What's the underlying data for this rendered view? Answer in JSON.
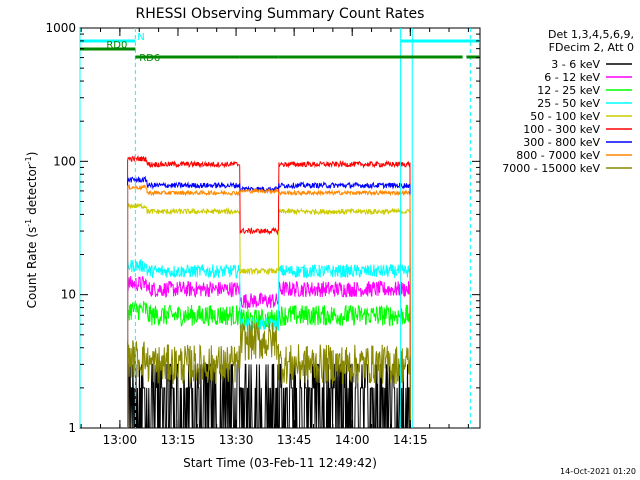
{
  "chart_data": {
    "type": "line",
    "title": "RHESSI Observing Summary Count Rates",
    "xlabel": "Start Time (03-Feb-11 12:49:42)",
    "ylabel_main": "Count Rate (s",
    "ylabel_sup1": "-1",
    "ylabel_mid": " detector",
    "ylabel_sup2": "-1",
    "ylabel_end": ")",
    "y_scale": "log",
    "ylim": [
      1,
      1000
    ],
    "xlim": [
      "12:49:42",
      "14:33:00"
    ],
    "x_ticks": [
      "13:00",
      "13:15",
      "13:30",
      "13:45",
      "14:00",
      "14:15"
    ],
    "y_ticks": [
      "1",
      "10",
      "100",
      "1000"
    ],
    "legend_header": [
      "Det 1,3,4,5,6,9,",
      "FDecim 2, Att 0"
    ],
    "legend_position": "right",
    "timestamp": "14-Oct-2021 01:20",
    "series": [
      {
        "name": "3 - 6 keV",
        "color": "#000000",
        "level": 1.5,
        "noise": 0.7,
        "dip": 1.5
      },
      {
        "name": "6 - 12 keV",
        "color": "#ff00ff",
        "level": 11,
        "noise": 0.06,
        "dip": 9
      },
      {
        "name": "12 - 25 keV",
        "color": "#00ff00",
        "level": 7,
        "noise": 0.08,
        "dip": 6.5
      },
      {
        "name": "25 - 50 keV",
        "color": "#00ffff",
        "level": 15,
        "noise": 0.05,
        "dip": 6
      },
      {
        "name": "50 - 100 keV",
        "color": "#cccc00",
        "level": 42,
        "noise": 0.02,
        "dip": 15
      },
      {
        "name": "100 - 300 keV",
        "color": "#ff0000",
        "level": 95,
        "noise": 0.02,
        "dip": 30
      },
      {
        "name": "300 - 800 keV",
        "color": "#0000ff",
        "level": 66,
        "noise": 0.02,
        "dip": 62
      },
      {
        "name": "800 - 7000 keV",
        "color": "#ff8800",
        "level": 58,
        "noise": 0.015,
        "dip": 60
      },
      {
        "name": "7000 - 15000 keV",
        "color": "#888800",
        "level": 3,
        "noise": 0.15,
        "dip": 4.5
      }
    ],
    "data_start": "13:02:00",
    "data_end": "14:15:00",
    "attenuator_window": [
      "13:31:00",
      "13:41:00"
    ],
    "markers": [
      {
        "time": "13:04:00",
        "style": "dashed",
        "color": "#00ffff"
      },
      {
        "time": "14:12:30",
        "style": "solid",
        "color": "#00ffff"
      },
      {
        "time": "14:15:30",
        "style": "solid",
        "color": "#00ffff"
      },
      {
        "time": "14:30:30",
        "style": "dashed",
        "color": "#00ffff"
      },
      {
        "time": "12:49:42",
        "style": "solid",
        "color": "#00ffff"
      }
    ],
    "flag_bars": [
      {
        "label": "N",
        "color": "#00ffff",
        "segments": [
          [
            "12:49:42",
            "13:04:00"
          ],
          [
            "14:12:30",
            "14:33:00"
          ]
        ],
        "label_time": "13:04:30",
        "row": 0
      },
      {
        "label": "RD0",
        "color": "#008800",
        "segments": [
          [
            "12:49:42",
            "13:04:00"
          ]
        ],
        "label_time": "12:56:30",
        "row": 1
      },
      {
        "label": "RD6",
        "color": "#008800",
        "segments": [
          [
            "13:04:00",
            "13:31:00"
          ],
          [
            "13:31:00",
            "13:41:00"
          ],
          [
            "13:41:00",
            "14:28:30"
          ],
          [
            "14:29:30",
            "14:33:00"
          ]
        ],
        "label_time": "13:05:00",
        "row": 2
      }
    ]
  }
}
